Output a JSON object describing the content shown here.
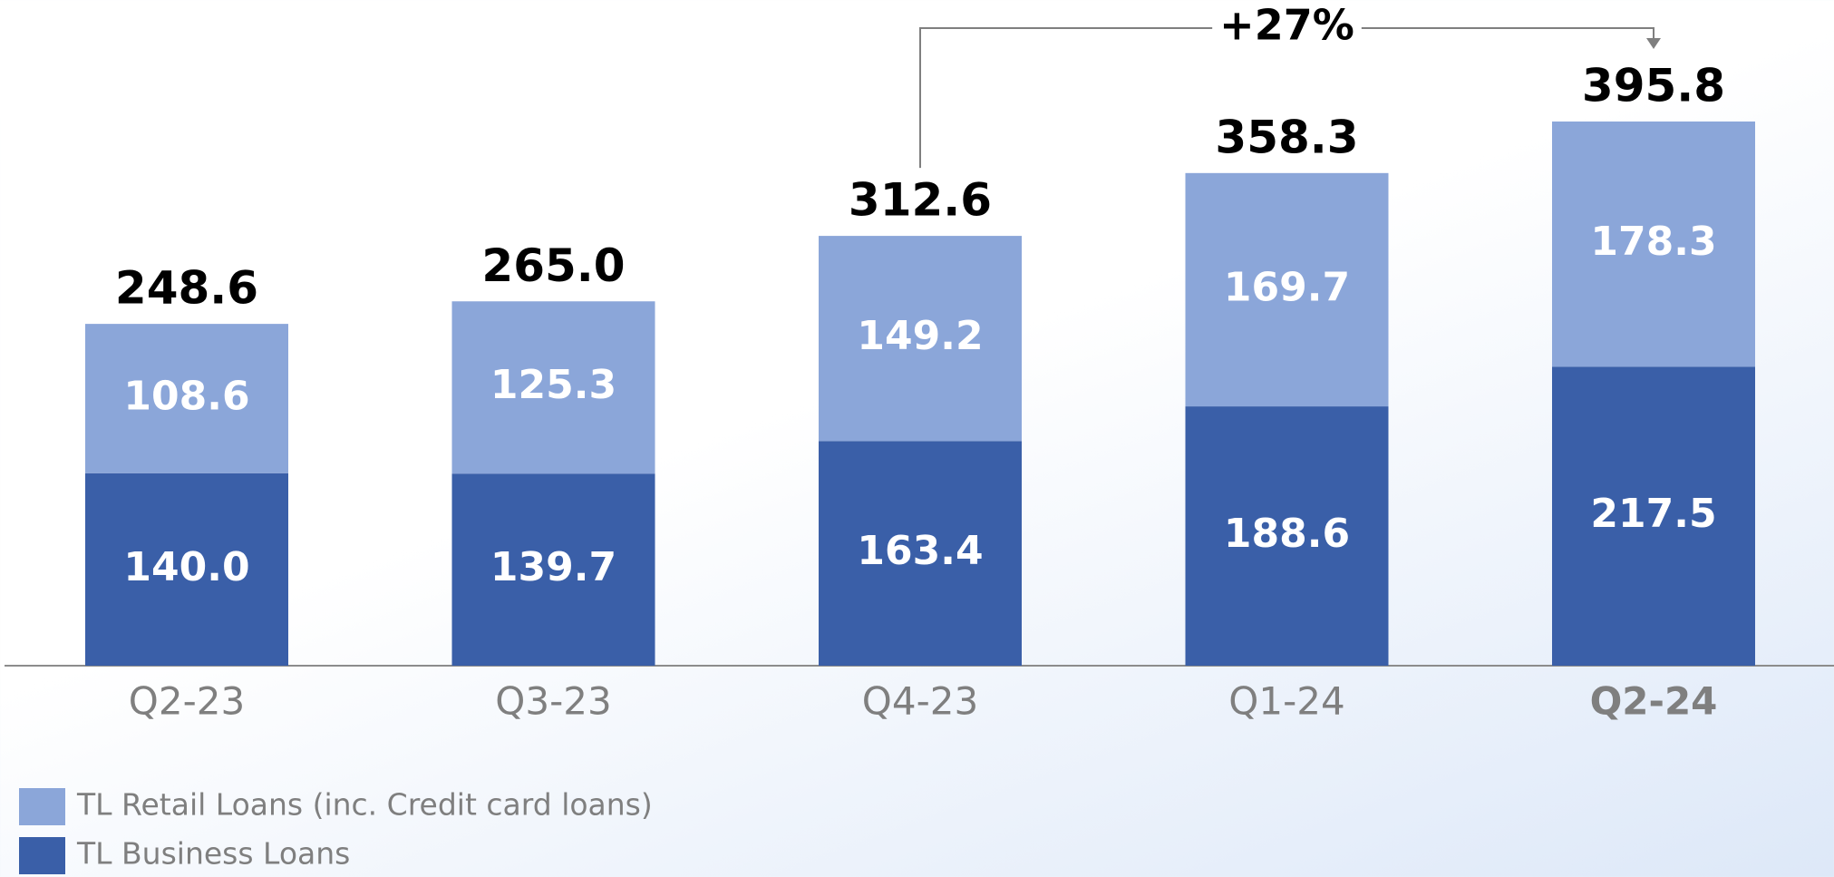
{
  "chart_data": {
    "type": "stacked-bar",
    "categories": [
      "Q2-23",
      "Q3-23",
      "Q4-23",
      "Q1-24",
      "Q2-24"
    ],
    "series": [
      {
        "name": "TL Business Loans",
        "color": "#3a5fa8",
        "values": [
          140.0,
          139.7,
          163.4,
          188.6,
          217.5
        ],
        "value_labels": [
          "140.0",
          "139.7",
          "163.4",
          "188.6",
          "217.5"
        ]
      },
      {
        "name": "TL Retail Loans (inc. Credit card loans)",
        "color": "#8ba6d9",
        "values": [
          108.6,
          125.3,
          149.2,
          169.7,
          178.3
        ],
        "value_labels": [
          "108.6",
          "125.3",
          "149.2",
          "169.7",
          "178.3"
        ]
      }
    ],
    "totals": [
      248.6,
      265.0,
      312.6,
      358.3,
      395.8
    ],
    "total_labels": [
      "248.6",
      "265.0",
      "312.6",
      "358.3",
      "395.8"
    ],
    "annotation": {
      "text": "+27%",
      "from": 2,
      "to": 4
    }
  }
}
